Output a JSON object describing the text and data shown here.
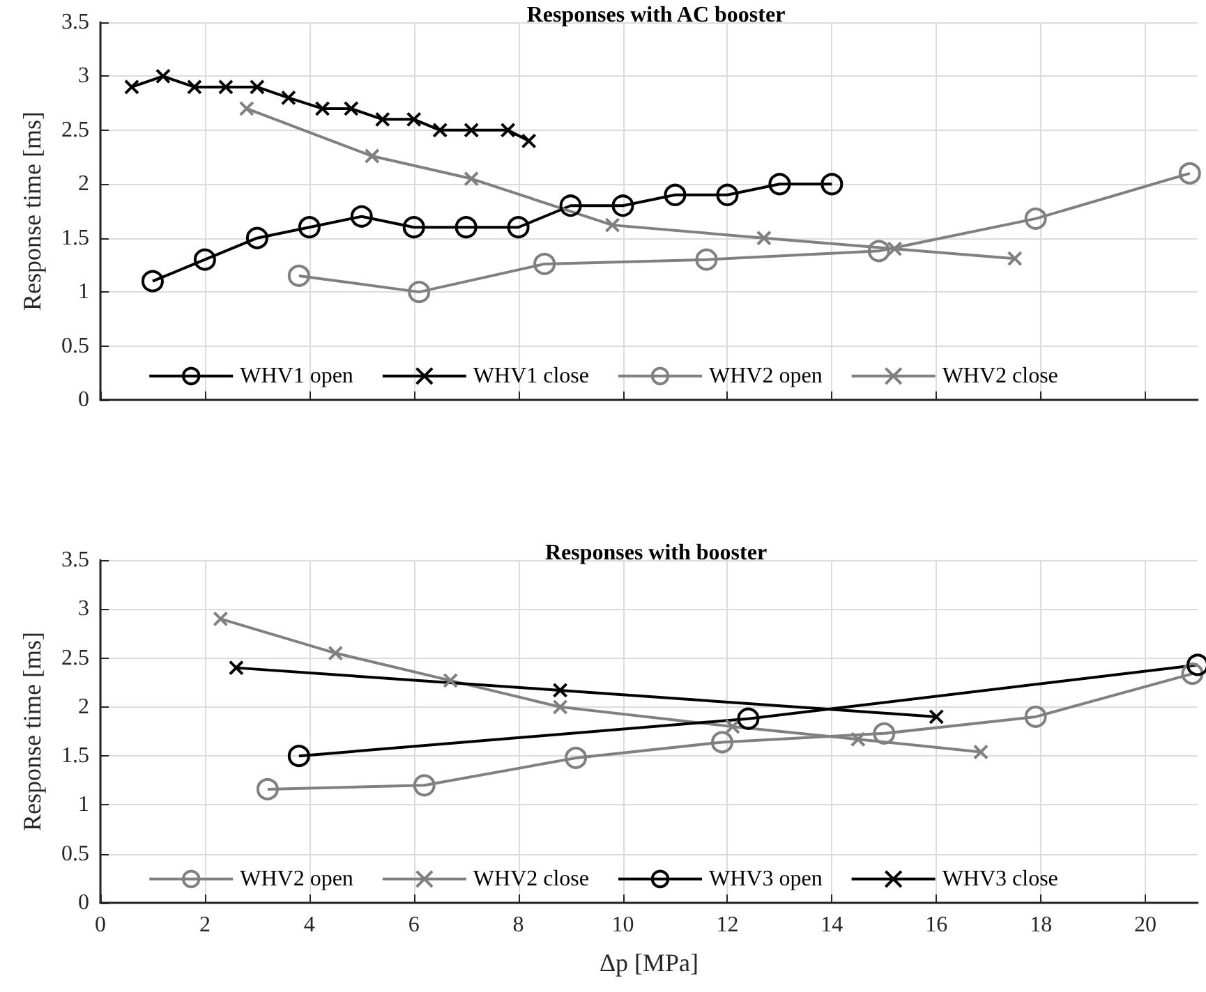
{
  "chart_data": [
    {
      "type": "line",
      "title": "Responses with AC booster",
      "ylabel": "Response time [ms]",
      "xlim": [
        0,
        21
      ],
      "xticks": [
        0,
        2,
        4,
        6,
        8,
        10,
        12,
        14,
        16,
        18,
        20
      ],
      "ylim": [
        0,
        3.5
      ],
      "yticks": [
        0,
        0.5,
        1,
        1.5,
        2,
        2.5,
        3,
        3.5
      ],
      "grid": true,
      "legend": "bottom",
      "tick_labels": "y",
      "line_style": "solid",
      "series": [
        {
          "name": "WHV1 open",
          "color": "#000000",
          "marker": "circle",
          "x": [
            1,
            2,
            3,
            4,
            5,
            6,
            7,
            8,
            9,
            10,
            11,
            12,
            13,
            14
          ],
          "values": [
            1.1,
            1.3,
            1.5,
            1.6,
            1.7,
            1.6,
            1.6,
            1.6,
            1.8,
            1.8,
            1.9,
            1.9,
            2.0,
            2.0
          ]
        },
        {
          "name": "WHV1 close",
          "color": "#000000",
          "marker": "cross",
          "x": [
            0.6,
            1.2,
            1.8,
            2.4,
            3.0,
            3.6,
            4.25,
            4.8,
            5.4,
            6.0,
            6.5,
            7.1,
            7.8,
            8.2
          ],
          "values": [
            2.9,
            3.0,
            2.9,
            2.9,
            2.9,
            2.8,
            2.7,
            2.7,
            2.6,
            2.6,
            2.5,
            2.5,
            2.5,
            2.4
          ]
        },
        {
          "name": "WHV2 open",
          "color": "#808080",
          "marker": "circle",
          "x": [
            3.8,
            6.1,
            8.5,
            11.6,
            14.9,
            17.9,
            20.85
          ],
          "values": [
            1.15,
            1.0,
            1.26,
            1.3,
            1.38,
            1.68,
            2.1
          ]
        },
        {
          "name": "WHV2 close",
          "color": "#808080",
          "marker": "cross",
          "x": [
            2.8,
            5.2,
            7.1,
            9.8,
            12.7,
            15.2,
            17.5
          ],
          "values": [
            2.7,
            2.26,
            2.05,
            1.62,
            1.5,
            1.4,
            1.31
          ]
        }
      ]
    },
    {
      "type": "line",
      "title": "Responses with booster",
      "xlabel": "Δp [MPa]",
      "ylabel": "Response time [ms]",
      "xlim": [
        0,
        21
      ],
      "xticks": [
        0,
        2,
        4,
        6,
        8,
        10,
        12,
        14,
        16,
        18,
        20
      ],
      "ylim": [
        0,
        3.5
      ],
      "yticks": [
        0,
        0.5,
        1,
        1.5,
        2,
        2.5,
        3,
        3.5
      ],
      "grid": true,
      "legend": "bottom",
      "line_style": "solid",
      "series": [
        {
          "name": "WHV2 open",
          "color": "#808080",
          "marker": "circle",
          "x": [
            3.2,
            6.2,
            9.1,
            11.9,
            15.0,
            17.9,
            20.9
          ],
          "values": [
            1.16,
            1.2,
            1.48,
            1.64,
            1.73,
            1.9,
            2.34
          ]
        },
        {
          "name": "WHV2 close",
          "color": "#808080",
          "marker": "cross",
          "x": [
            2.3,
            4.5,
            6.7,
            8.8,
            12.1,
            14.5,
            16.85
          ],
          "values": [
            2.9,
            2.55,
            2.27,
            2.0,
            1.8,
            1.67,
            1.54
          ]
        },
        {
          "name": "WHV3 open",
          "color": "#000000",
          "marker": "circle",
          "x": [
            3.8,
            12.4,
            21.0
          ],
          "values": [
            1.5,
            1.88,
            2.43
          ]
        },
        {
          "name": "WHV3 close",
          "color": "#000000",
          "marker": "cross",
          "x": [
            2.6,
            8.8,
            16.0
          ],
          "values": [
            2.4,
            2.17,
            1.9
          ]
        }
      ]
    }
  ]
}
